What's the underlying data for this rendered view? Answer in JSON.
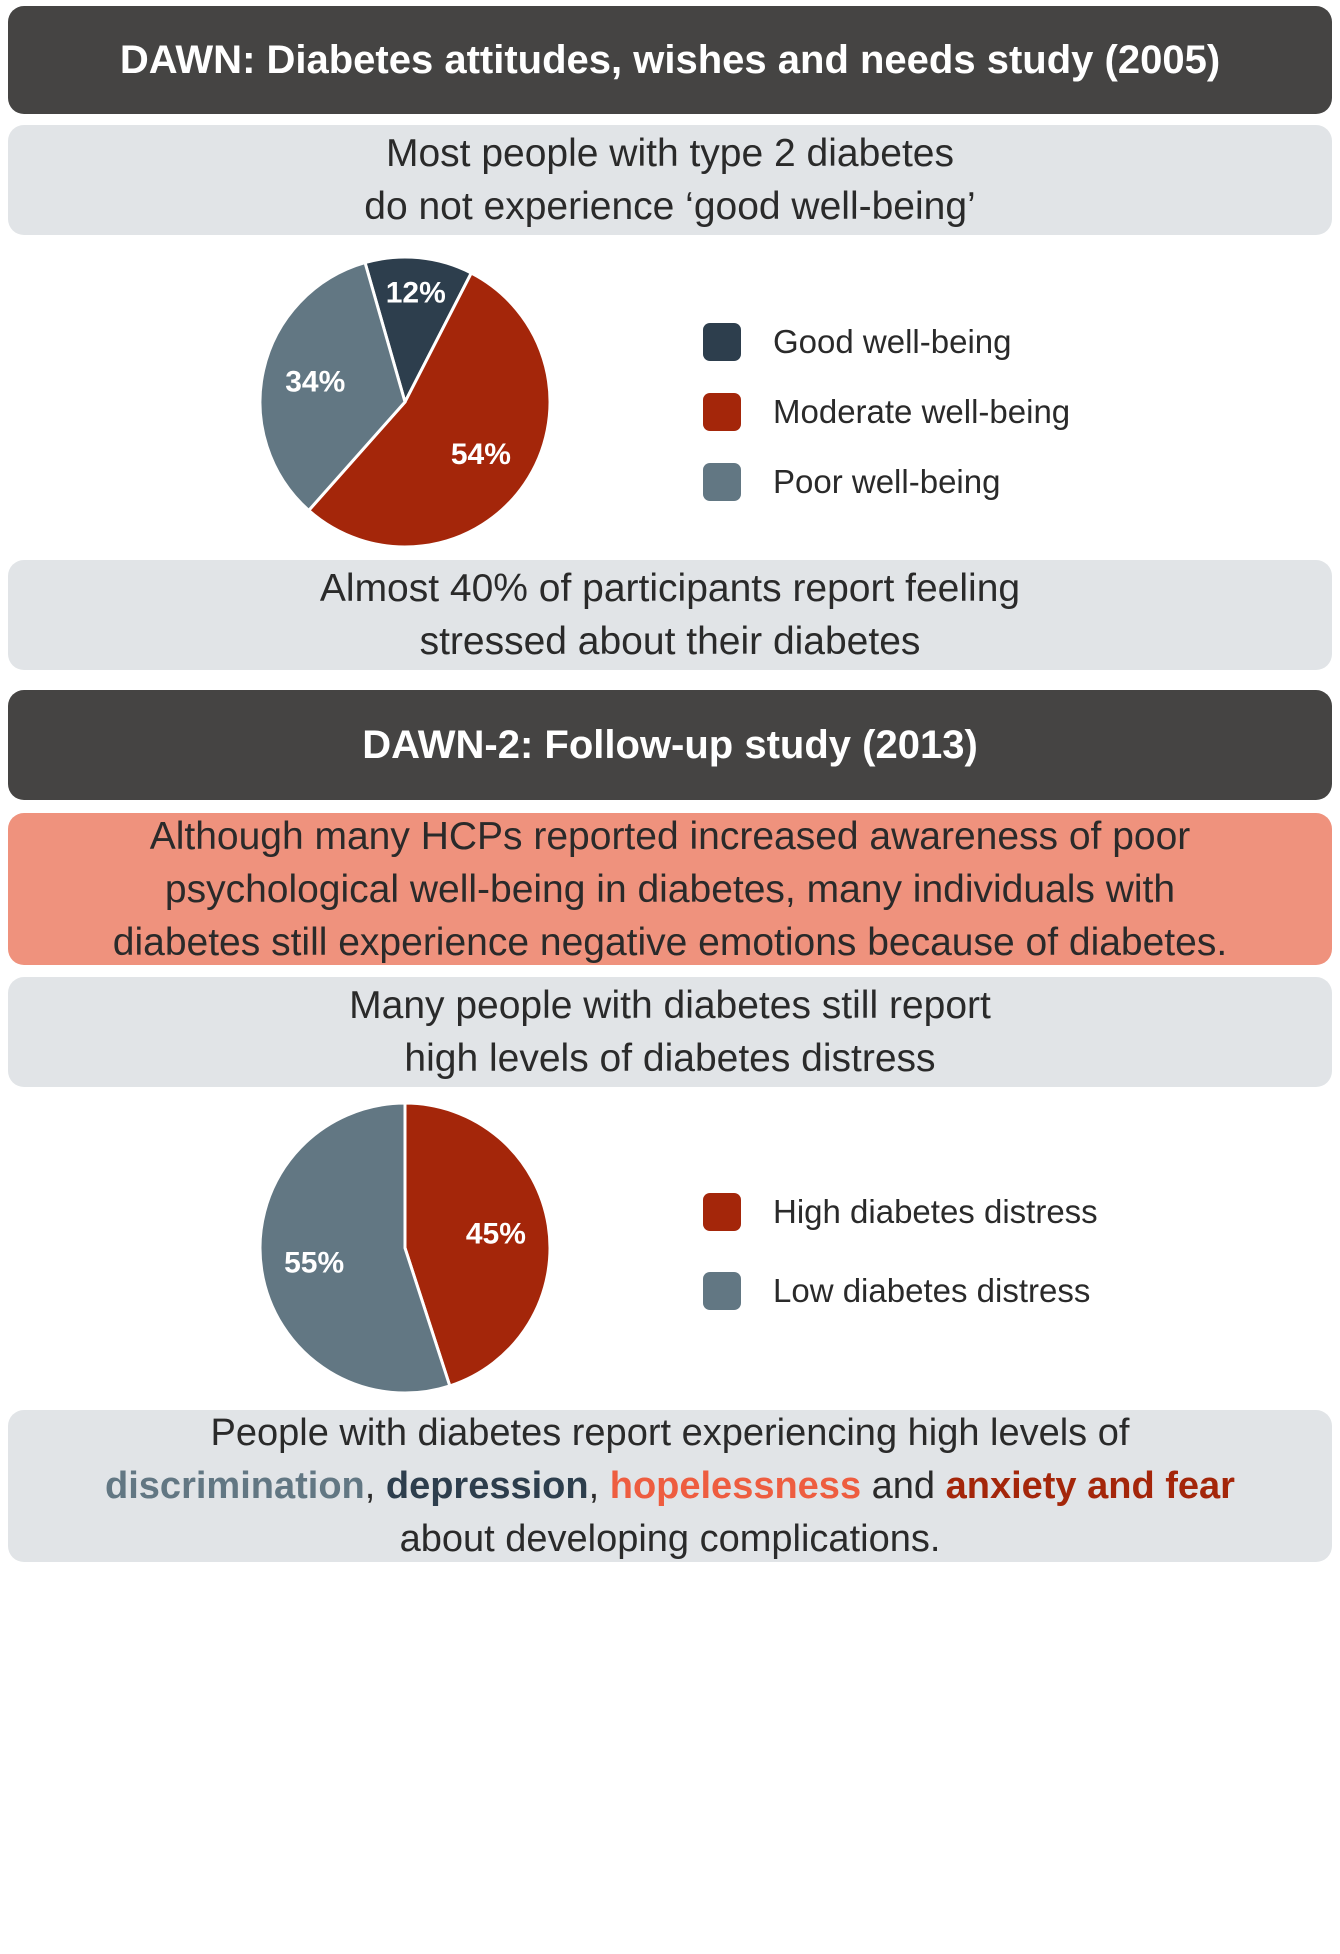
{
  "header1": {
    "title": "DAWN: Diabetes attitudes, wishes and needs study (2005)"
  },
  "box1": {
    "lines": [
      "Most people with type 2 diabetes",
      "do not experience ‘good well-being’"
    ]
  },
  "box2": {
    "lines": [
      "Almost 40% of participants report feeling",
      "stressed about their diabetes"
    ]
  },
  "header2": {
    "title": "DAWN-2: Follow-up study (2013)"
  },
  "box3": {
    "lines": [
      "Although many HCPs reported increased awareness of poor",
      "psychological well-being in diabetes, many individuals with",
      "diabetes still experience negative emotions because of diabetes."
    ]
  },
  "box4": {
    "lines": [
      "Many people with diabetes still report",
      "high levels of diabetes distress"
    ]
  },
  "box5": {
    "line1": "People with diabetes report experiencing high levels of",
    "kw1": "discrimination",
    "sep1": ", ",
    "kw2": "depression",
    "sep2": ", ",
    "kw3": "hopelessness",
    "sep3": " and ",
    "kw4": "anxiety and fear",
    "line3": "about developing complications."
  },
  "colors": {
    "dark_box": "#454443",
    "light_box": "#e1e4e7",
    "salmon_box": "#ef927d",
    "good": "#2d3e4d",
    "moderate": "#a4260a",
    "poor": "#627783",
    "kw_discrimination": "#627783",
    "kw_depression": "#2d3e4d",
    "kw_hopelessness": "#ee5d40",
    "kw_anxiety": "#a4260a"
  },
  "chart_data": [
    {
      "type": "pie",
      "slices": [
        {
          "label": "Good well-being",
          "value": 12,
          "value_label": "12%",
          "color": "#2d3e4d"
        },
        {
          "label": "Moderate well-being",
          "value": 54,
          "value_label": "54%",
          "color": "#a4260a"
        },
        {
          "label": "Poor well-being",
          "value": 34,
          "value_label": "34%",
          "color": "#627783"
        }
      ],
      "start_angle_deg": -16,
      "legend_position": "right"
    },
    {
      "type": "pie",
      "slices": [
        {
          "label": "High diabetes distress",
          "value": 45,
          "value_label": "45%",
          "color": "#a4260a"
        },
        {
          "label": "Low diabetes distress",
          "value": 55,
          "value_label": "55%",
          "color": "#627783"
        }
      ],
      "start_angle_deg": 0,
      "legend_position": "right"
    }
  ]
}
